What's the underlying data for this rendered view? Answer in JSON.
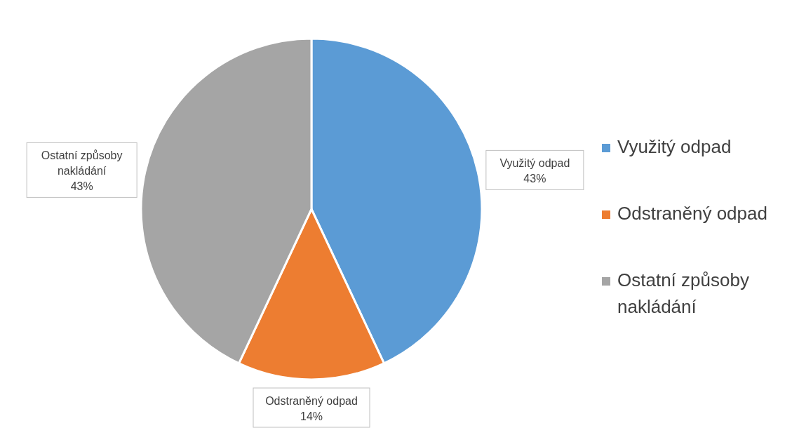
{
  "chart_data": {
    "type": "pie",
    "categories": [
      "Využitý odpad",
      "Odstraněný odpad",
      "Ostatní způsoby nakládání"
    ],
    "values": [
      43,
      14,
      43
    ],
    "colors": [
      "#5b9bd5",
      "#ed7d31",
      "#a5a5a5"
    ],
    "value_labels": [
      "43%",
      "14%",
      "43%"
    ],
    "legend": "right"
  }
}
